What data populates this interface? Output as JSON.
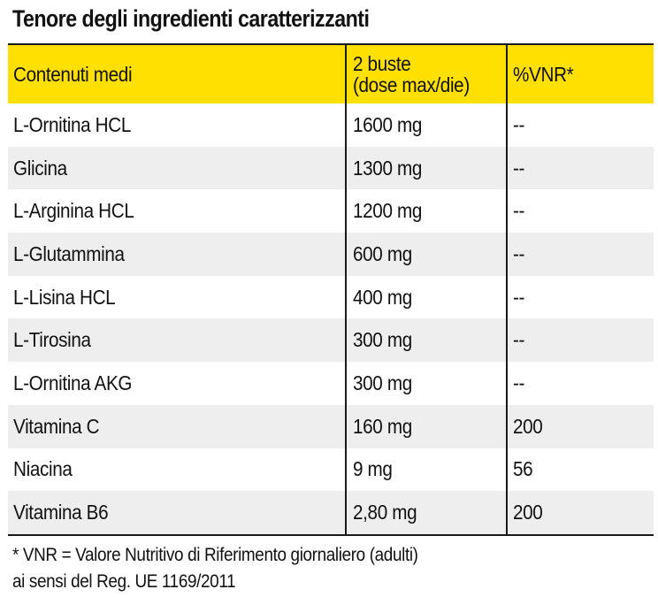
{
  "title": "Tenore degli ingredienti caratterizzanti",
  "table": {
    "headers": {
      "col1": "Contenuti medi",
      "col2_line1": "2 buste",
      "col2_line2": "(dose max/die)",
      "col3": "%VNR*"
    },
    "rows": [
      {
        "name": "L-Ornitina HCL",
        "amount": "1600 mg",
        "vnr": "--"
      },
      {
        "name": "Glicina",
        "amount": "1300  mg",
        "vnr": "--"
      },
      {
        "name": "L-Arginina HCL",
        "amount": "1200  mg",
        "vnr": "--"
      },
      {
        "name": "L-Glutammina",
        "amount": "600  mg",
        "vnr": "--"
      },
      {
        "name": "L-Lisina HCL",
        "amount": "400  mg",
        "vnr": "--"
      },
      {
        "name": "L-Tirosina",
        "amount": "300 mg",
        "vnr": "--"
      },
      {
        "name": "L-Ornitina AKG",
        "amount": "300  mg",
        "vnr": "--"
      },
      {
        "name": "Vitamina C",
        "amount": "160  mg",
        "vnr": "200"
      },
      {
        "name": "Niacina",
        "amount": "9 mg",
        "vnr": "56"
      },
      {
        "name": "Vitamina B6",
        "amount": "2,80 mg",
        "vnr": "200"
      }
    ]
  },
  "footnote": {
    "line1": "* VNR = Valore Nutritivo di Riferimento giornaliero (adulti)",
    "line2": "ai sensi del Reg. UE 1169/2011"
  },
  "colors": {
    "header_bg": "#ffe000",
    "shade_bg": "#eeeeee",
    "border": "#1a1a1a"
  }
}
